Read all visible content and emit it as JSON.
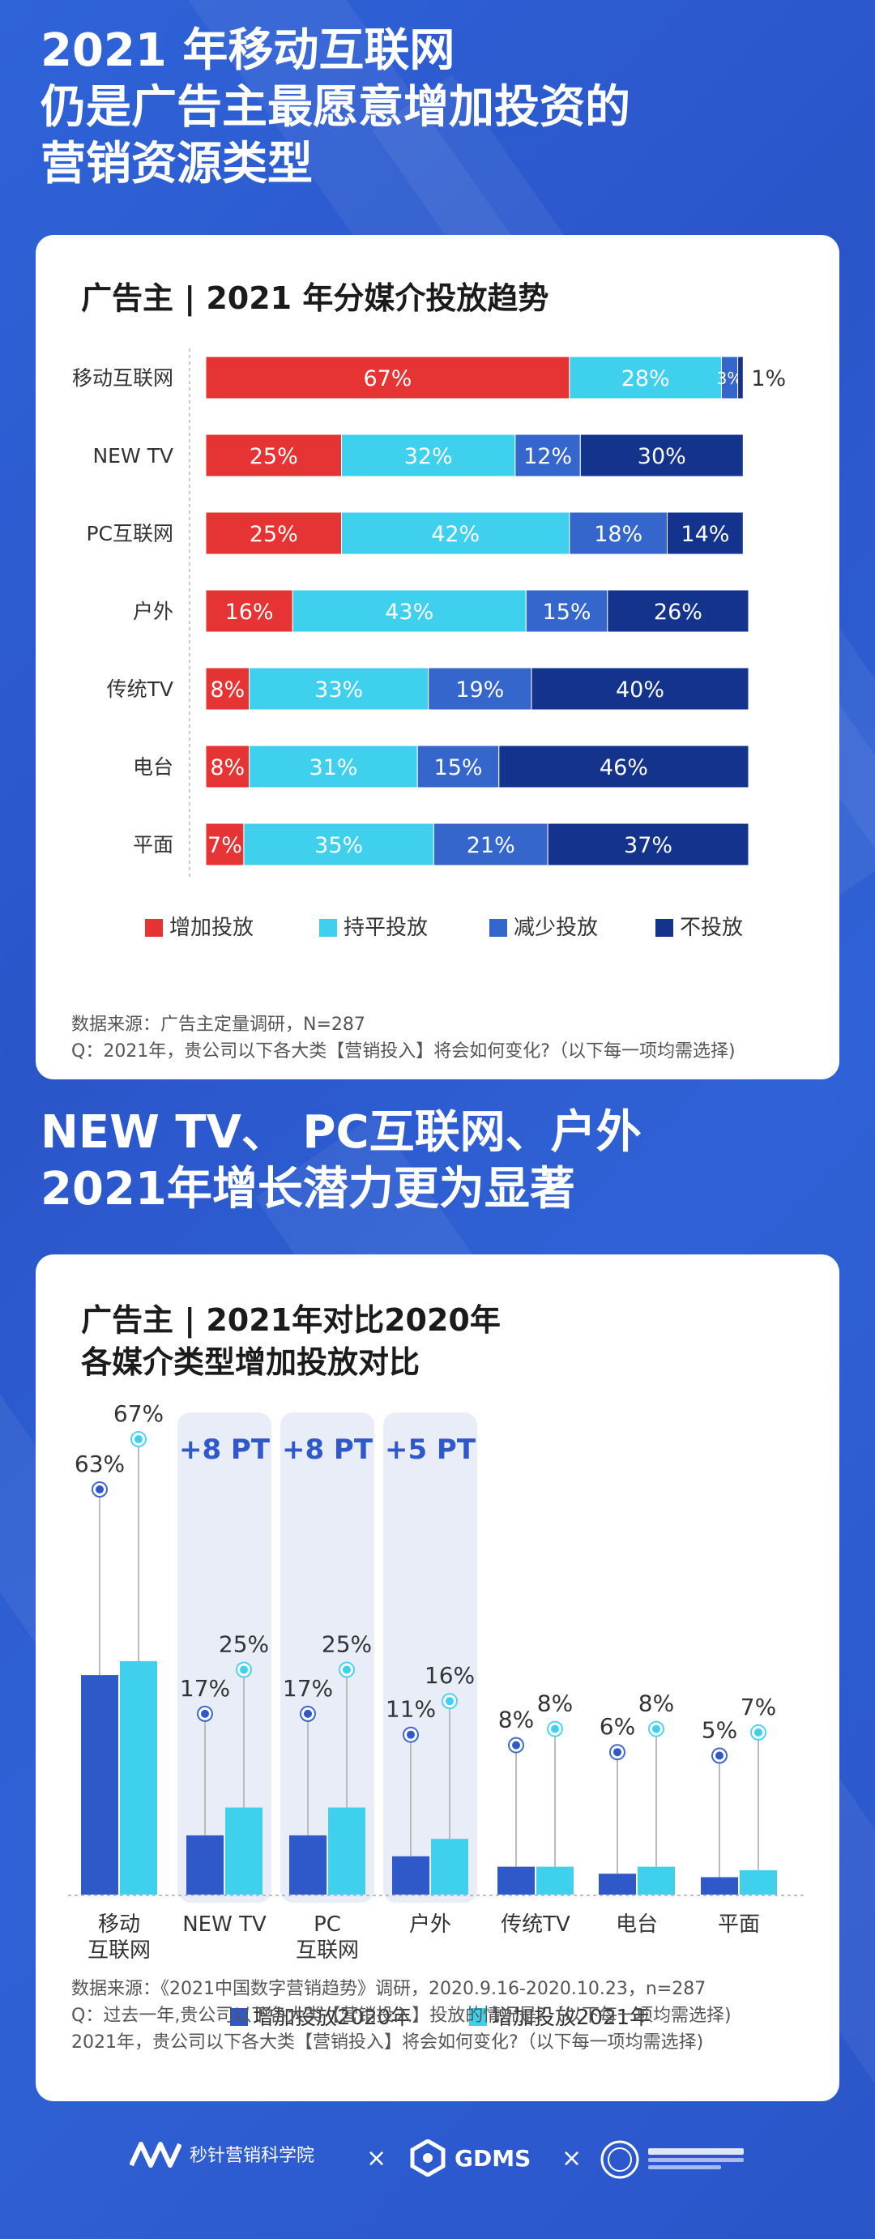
{
  "headline1": [
    "2021 年移动互联网",
    "仍是广告主最愿意增加投资的",
    "营销资源类型"
  ],
  "headline2": [
    "NEW TV、 PC互联网、户外",
    "2021年增长潜力更为显著"
  ],
  "card1": {
    "title": "广告主 | 2021 年分媒介投放趋势",
    "source": [
      "数据来源：广告主定量调研，N=287",
      "Q：2021年，贵公司以下各大类【营销投入】将会如何变化?（以下每一项均需选择)"
    ]
  },
  "card2": {
    "title": [
      "广告主 | 2021年对比2020年",
      "各媒介类型增加投放对比"
    ],
    "source": [
      "数据来源：《2021中国数字营销趋势》调研，2020.9.16-2020.10.23，n=287",
      "Q：过去一年,贵公司以下各大类【营销投入】投放的情况是?（以下每一项均需选择)",
      "2021年，贵公司以下各大类【营销投入】将会如何变化?（以下每一项均需选择)"
    ]
  },
  "chart_data": [
    {
      "type": "bar",
      "orientation": "horizontal-stacked",
      "title": "广告主 | 2021 年分媒介投放趋势",
      "categories": [
        "移动互联网",
        "NEW TV",
        "PC互联网",
        "户外",
        "传统TV",
        "电台",
        "平面"
      ],
      "series": [
        {
          "name": "增加投放",
          "color": "#e63333",
          "values": [
            67,
            25,
            25,
            16,
            8,
            8,
            7
          ]
        },
        {
          "name": "持平投放",
          "color": "#3fd0ee",
          "values": [
            28,
            32,
            42,
            43,
            33,
            31,
            35
          ]
        },
        {
          "name": "减少投放",
          "color": "#3466cc",
          "values": [
            3,
            12,
            18,
            15,
            19,
            15,
            21
          ]
        },
        {
          "name": "不投放",
          "color": "#14338c",
          "values": [
            1,
            30,
            14,
            26,
            40,
            46,
            37
          ]
        }
      ],
      "value_suffix": "%",
      "legend": "bottom"
    },
    {
      "type": "bar",
      "title": "各媒介类型增加投放对比",
      "categories": [
        "移动\n互联网",
        "NEW TV",
        "PC\n互联网",
        "户外",
        "传统TV",
        "电台",
        "平面"
      ],
      "series": [
        {
          "name": "增加投放2020年",
          "color": "#2f59c8",
          "values": [
            63,
            17,
            17,
            11,
            8,
            6,
            5
          ]
        },
        {
          "name": "增加投放2021年",
          "color": "#3fd0ee",
          "values": [
            67,
            25,
            25,
            16,
            8,
            8,
            7
          ]
        }
      ],
      "highlights": [
        {
          "category_index": 1,
          "label": "+8 PT"
        },
        {
          "category_index": 2,
          "label": "+8 PT"
        },
        {
          "category_index": 3,
          "label": "+5 PT"
        }
      ],
      "value_suffix": "%",
      "legend": "bottom"
    }
  ]
}
